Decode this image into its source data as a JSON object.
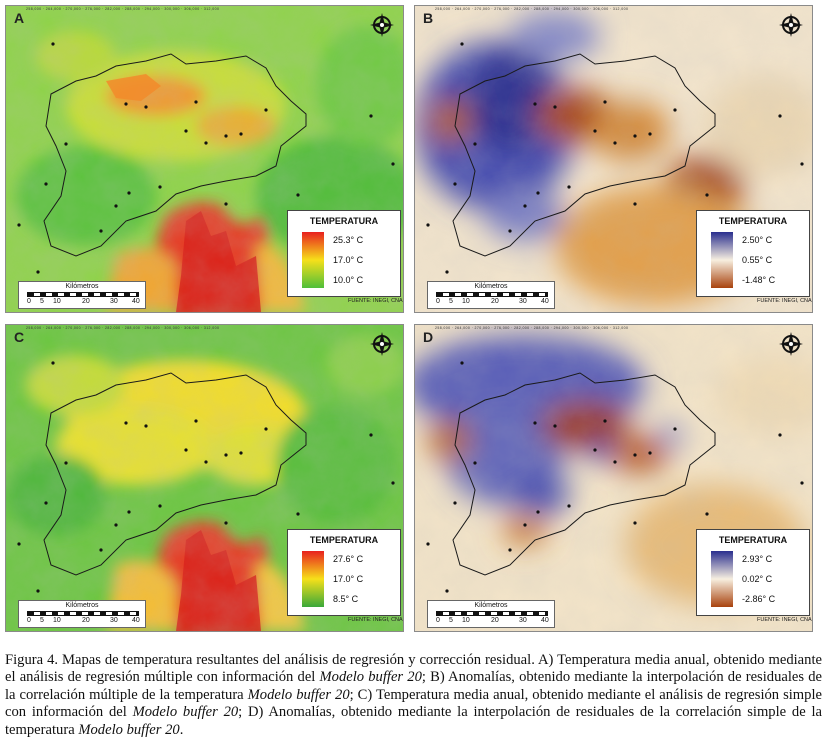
{
  "panels": [
    {
      "letter": "A",
      "legend": {
        "title": "TEMPERATURA",
        "high": "25.3° C",
        "mid": "17.0° C",
        "low": "10.0° C",
        "colors": [
          "#e8211f",
          "#f6e01a",
          "#4fbf3a"
        ]
      },
      "scalebar": {
        "title": "Kilómetros",
        "ticks": [
          "0",
          "5",
          "10",
          "20",
          "30",
          "40"
        ]
      },
      "source": "FUENTE: INEGI, CNA"
    },
    {
      "letter": "B",
      "legend": {
        "title": "TEMPERATURA",
        "high": "2.50° C",
        "mid": "0.55° C",
        "low": "-1.48° C",
        "colors": [
          "#2a2f8f",
          "#f7efe0",
          "#a8420d"
        ]
      },
      "scalebar": {
        "title": "Kilómetros",
        "ticks": [
          "0",
          "5",
          "10",
          "20",
          "30",
          "40"
        ]
      },
      "source": "FUENTE: INEGI, CNA"
    },
    {
      "letter": "C",
      "legend": {
        "title": "TEMPERATURA",
        "high": "27.6° C",
        "mid": "17.0° C",
        "low": "8.5° C",
        "colors": [
          "#e8211f",
          "#f6e01a",
          "#3aa83a"
        ]
      },
      "scalebar": {
        "title": "Kilómetros",
        "ticks": [
          "0",
          "5",
          "10",
          "20",
          "30",
          "40"
        ]
      },
      "source": "FUENTE: INEGI, CNA"
    },
    {
      "letter": "D",
      "legend": {
        "title": "TEMPERATURA",
        "high": "2.93° C",
        "mid": "0.02° C",
        "low": "-2.86° C",
        "colors": [
          "#2a2f8f",
          "#f7efe0",
          "#a8420d"
        ]
      },
      "scalebar": {
        "title": "Kilómetros",
        "ticks": [
          "0",
          "5",
          "10",
          "20",
          "30",
          "40"
        ]
      },
      "source": "FUENTE: INEGI, CNA"
    }
  ],
  "caption": {
    "p1": "Figura 4. Mapas de temperatura resultantes del análisis de regresión y corrección residual. A) Temperatura media anual, obtenido mediante el análisis de regresión múltiple con información del ",
    "em1": "Modelo buffer 20",
    "p2": "; B) Anomalías, obtenido mediante la interpolación de residuales de la correlación múltiple de la temperatura ",
    "em2": "Modelo buffer 20",
    "p3": "; C) Temperatura media anual, obtenido mediante el análisis de regresión simple con información del ",
    "em3": "Modelo buffer 20",
    "p4": "; D) Anomalías, obtenido mediante la interpolación de residuales de la correlación simple de la temperatura ",
    "em4": "Modelo buffer 20",
    "p5": "."
  }
}
